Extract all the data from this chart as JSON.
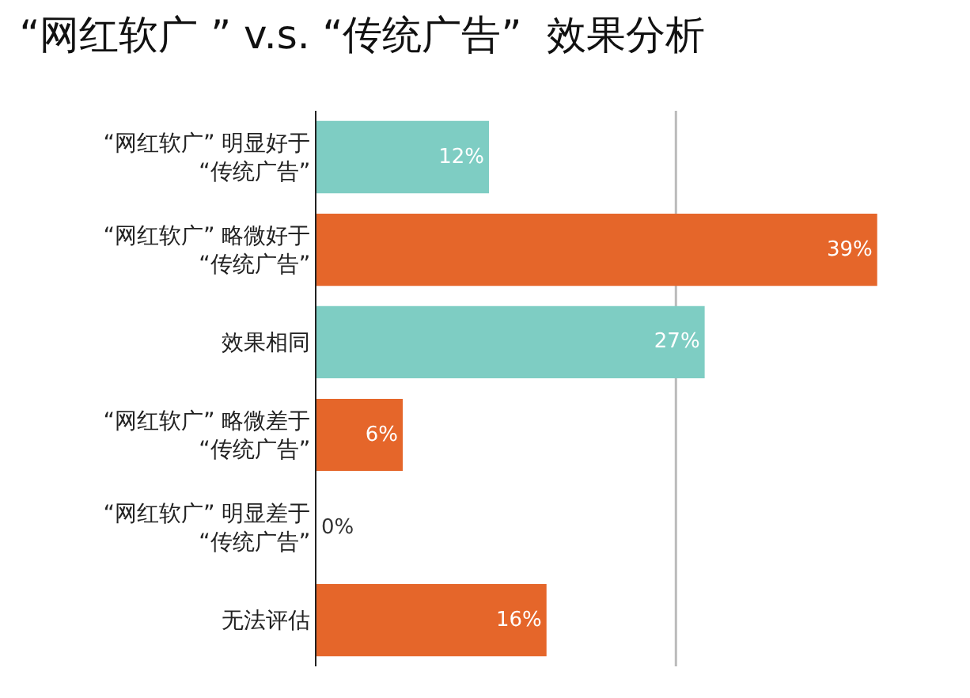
{
  "chart_data": {
    "type": "bar",
    "orientation": "horizontal",
    "title": "“网红软广 ” v.s. “传统广告”  效果分析",
    "categories": [
      "“网红软广” 明显好于\n“传统广告”",
      "“网红软广” 略微好于\n“传统广告”",
      "效果相同",
      "“网红软广” 略微差于\n“传统广告”",
      "“网红软广” 明显差于\n“传统广告”",
      "无法评估"
    ],
    "values": [
      12,
      39,
      27,
      6,
      0,
      16
    ],
    "colors": [
      "#7ecdc3",
      "#e5662a",
      "#7ecdc3",
      "#e5662a",
      "#e5662a",
      "#e5662a"
    ],
    "value_labels": [
      "12%",
      "39%",
      "27%",
      "6%",
      "0%",
      "16%"
    ],
    "ref_lines": [
      {
        "axis": "x",
        "value": 25,
        "color": "#bbbbbb"
      }
    ],
    "tick_labels": "y"
  }
}
